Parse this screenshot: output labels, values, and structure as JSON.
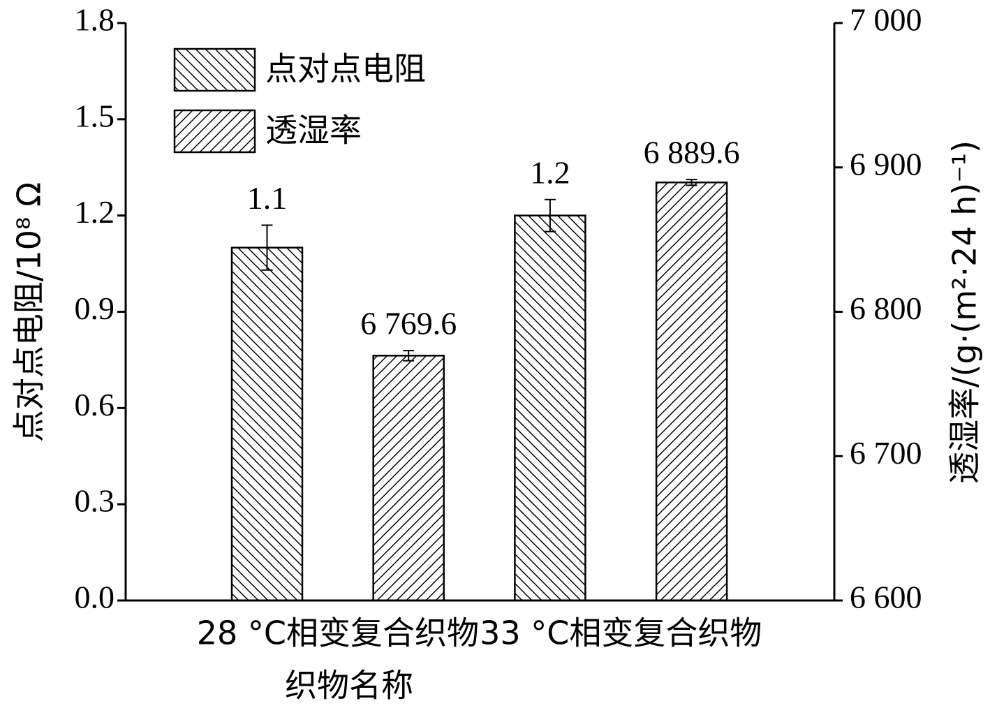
{
  "chart_data": {
    "type": "bar",
    "x_label": "织物名称",
    "y_label": "点对点电阻/10⁸ Ω",
    "y2_label": "透湿率/(g·(m²·24 h)⁻¹)",
    "categories": [
      "28 °C相变复合织物",
      "33 °C相变复合织物"
    ],
    "series": [
      {
        "name": "点对点电阻",
        "color": "#000000",
        "hatch": "backslash",
        "values": [
          1.1,
          1.2
        ],
        "errors": [
          0.07,
          0.05
        ]
      },
      {
        "name": "透湿率",
        "color": "#000000",
        "hatch": "slash",
        "axis": "y2",
        "values": [
          6769.6,
          6889.6
        ],
        "value_labels": [
          "6 769.6",
          "6 889.6"
        ],
        "errors": [
          3.5,
          2
        ]
      }
    ],
    "ylim": [
      0,
      1.8
    ],
    "yticks": [
      {
        "value": 0,
        "label": "0.0"
      },
      0.3,
      0.6,
      0.9,
      1.2,
      1.5,
      1.8
    ],
    "y2lim": [
      6600,
      7000
    ],
    "y2ticks": [
      {
        "value": 6600,
        "label": "6 600"
      },
      {
        "value": 6700,
        "label": "6 700"
      },
      {
        "value": 6800,
        "label": "6 800"
      },
      {
        "value": 6900,
        "label": "6 900"
      },
      {
        "value": 7000,
        "label": "7 000"
      }
    ],
    "legend": "upper left",
    "grid": false
  }
}
